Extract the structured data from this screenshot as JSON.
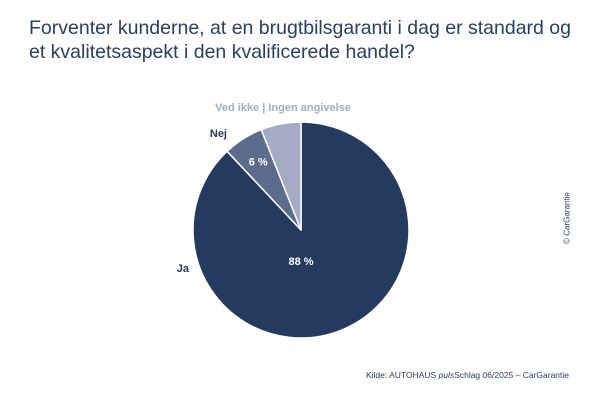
{
  "title": "Forventer kunderne, at en brugtbilsgaranti i dag er standard og et kvalitetsaspekt i den kvalificerede handel?",
  "copyright": "© CarGarantie",
  "source": {
    "prefix": "Kilde: AUTOHAUS ",
    "italic": "puls",
    "suffix": "Schlag 06/2025 – CarGarantie"
  },
  "chart_data": {
    "type": "pie",
    "slices": [
      {
        "label": "Ja",
        "value": 88,
        "value_label": "88 %",
        "color": "#243a5e",
        "label_color": "#243a5e",
        "value_color": "#ffffff"
      },
      {
        "label": "Nej",
        "value": 6,
        "value_label": "6 %",
        "color": "#5b6c8c",
        "label_color": "#243a5e",
        "value_color": "#ffffff"
      },
      {
        "label": "Ved ikke | Ingen angivelse",
        "value": 6,
        "value_label": "",
        "color": "#a4acc5",
        "label_color": "#a4acc5",
        "value_color": "#ffffff"
      }
    ]
  }
}
